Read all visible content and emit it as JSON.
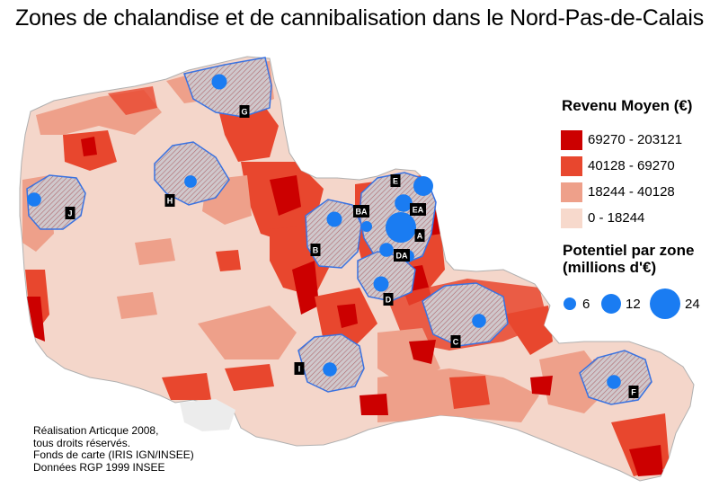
{
  "title": "Zones de chalandise et de cannibalisation dans le Nord-Pas-de-Calais",
  "legend_revenue": {
    "title": "Revenu Moyen (€)",
    "classes": [
      {
        "label": "69270 - 203121",
        "color": "#cc0000"
      },
      {
        "label": "40128 - 69270",
        "color": "#e8472e"
      },
      {
        "label": "18244 - 40128",
        "color": "#eea08a"
      },
      {
        "label": "0 - 18244",
        "color": "#f7d9cc"
      }
    ]
  },
  "legend_potential": {
    "title_line1": "Potentiel par zone",
    "title_line2": "(millions d'€)",
    "values": [
      "6",
      "12",
      "24"
    ]
  },
  "zones": [
    {
      "label": "G",
      "potential": 6
    },
    {
      "label": "H",
      "potential": 4
    },
    {
      "label": "J",
      "potential": 5
    },
    {
      "label": "E",
      "potential": 8
    },
    {
      "label": "BA",
      "potential": 3
    },
    {
      "label": "EA",
      "potential": 24
    },
    {
      "label": "A",
      "potential": 5
    },
    {
      "label": "B",
      "potential": 6
    },
    {
      "label": "DA",
      "potential": 4
    },
    {
      "label": "D",
      "potential": 6
    },
    {
      "label": "C",
      "potential": 5
    },
    {
      "label": "I",
      "potential": 5
    },
    {
      "label": "F",
      "potential": 5
    }
  ],
  "credits": [
    "Réalisation Articque 2008,",
    "tous droits réservés.",
    "Fonds de carte (IRIS IGN/INSEE)",
    "Données RGP 1999 INSEE"
  ],
  "colors": {
    "circle": "#1a7cf2",
    "zone_border": "#3a72e0",
    "zone_fill": "#c9c3c8",
    "region_base": "#f4d6ca"
  }
}
